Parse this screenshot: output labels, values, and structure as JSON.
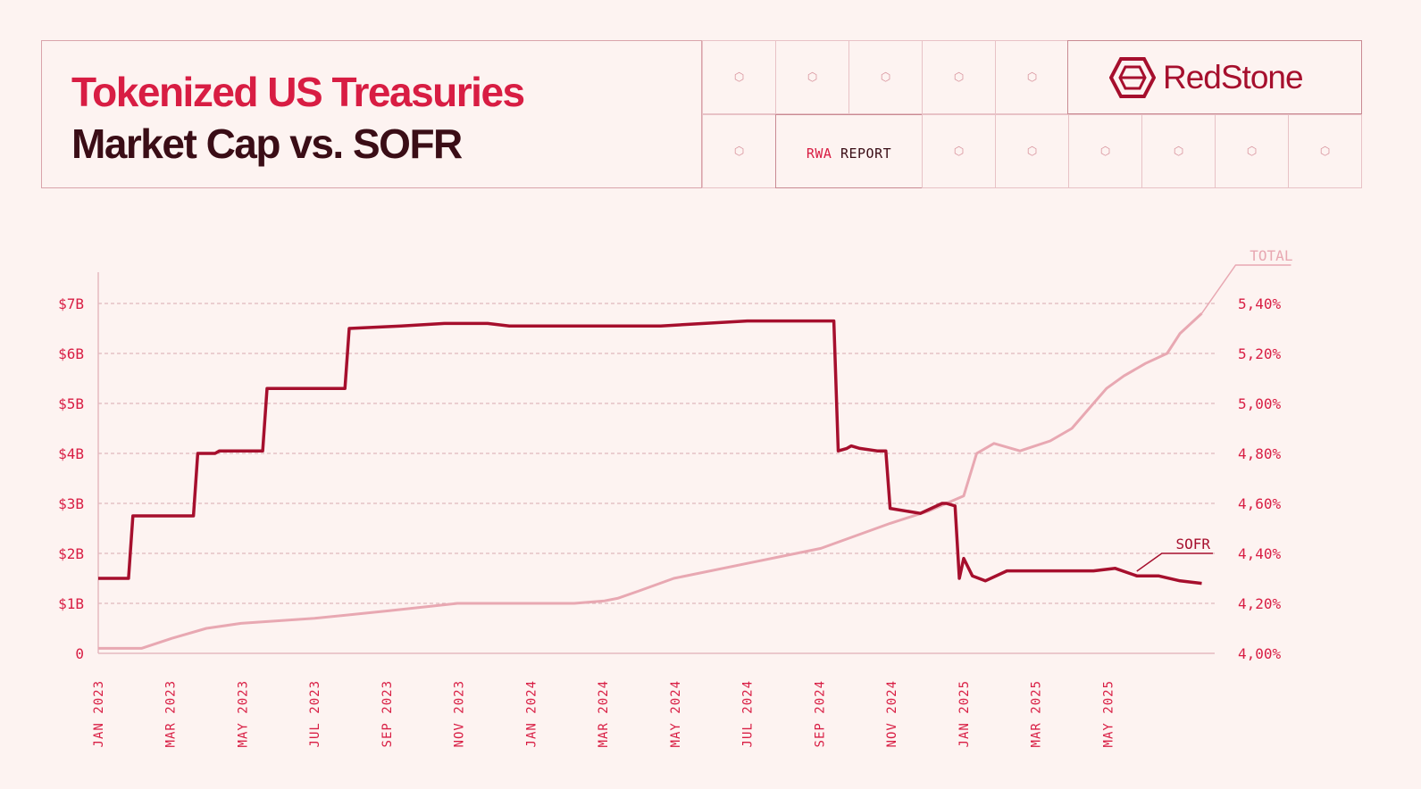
{
  "header": {
    "title_line1": "Tokenized US Treasuries",
    "title_line2": "Market Cap vs. SOFR",
    "report_label_a": "RWA",
    "report_label_b": " REPORT",
    "brand": "RedStone"
  },
  "colors": {
    "accent": "#d81d43",
    "dark": "#3a0d16",
    "sofr": "#a60f2d",
    "total": "#e8a8b2",
    "background": "#fdf3f1"
  },
  "chart_data": {
    "type": "line",
    "x_tick_labels": [
      "JAN 2023",
      "MAR 2023",
      "MAY 2023",
      "JUL 2023",
      "SEP 2023",
      "NOV 2023",
      "JAN 2024",
      "MAR 2024",
      "MAY 2024",
      "JUL 2024",
      "SEP 2024",
      "NOV 2024",
      "JAN 2025",
      "MAR 2025",
      "MAY 2025"
    ],
    "y_left_ticks": [
      "0",
      "$1B",
      "$2B",
      "$3B",
      "$4B",
      "$5B",
      "$6B",
      "$7B"
    ],
    "y_right_ticks": [
      "4,00%",
      "4,20%",
      "4,40%",
      "4,60%",
      "4,80%",
      "5,00%",
      "5,20%",
      "5,40%"
    ],
    "y_left_range": [
      0,
      7
    ],
    "y_right_range": [
      4.0,
      5.4
    ],
    "grid": "dashed horizontal",
    "series": [
      {
        "name": "SOFR",
        "axis": "right",
        "x": [
          2023.0,
          2023.05,
          2023.07,
          2023.08,
          2023.2,
          2023.22,
          2023.23,
          2023.27,
          2023.28,
          2023.38,
          2023.39,
          2023.5,
          2023.55,
          2023.57,
          2023.58,
          2023.7,
          2023.8,
          2023.85,
          2023.9,
          2023.95,
          2024.0,
          2024.05,
          2024.1,
          2024.2,
          2024.3,
          2024.4,
          2024.5,
          2024.6,
          2024.7,
          2024.71,
          2024.73,
          2024.74,
          2024.76,
          2024.8,
          2024.82,
          2024.83,
          2024.9,
          2024.95,
          2024.96,
          2024.98,
          2024.99,
          2025.0,
          2025.02,
          2025.05,
          2025.1,
          2025.2,
          2025.3,
          2025.35,
          2025.4,
          2025.45,
          2025.5,
          2025.55
        ],
        "values": [
          4.3,
          4.3,
          4.3,
          4.55,
          4.55,
          4.55,
          4.8,
          4.8,
          4.81,
          4.81,
          5.06,
          5.06,
          5.06,
          5.06,
          5.3,
          5.31,
          5.32,
          5.32,
          5.32,
          5.31,
          5.31,
          5.31,
          5.31,
          5.31,
          5.31,
          5.32,
          5.33,
          5.33,
          5.33,
          4.81,
          4.82,
          4.83,
          4.82,
          4.81,
          4.81,
          4.58,
          4.56,
          4.6,
          4.6,
          4.59,
          4.3,
          4.38,
          4.31,
          4.29,
          4.33,
          4.33,
          4.33,
          4.34,
          4.31,
          4.31,
          4.29,
          4.28
        ]
      },
      {
        "name": "TOTAL",
        "axis": "left",
        "x": [
          2023.0,
          2023.1,
          2023.17,
          2023.25,
          2023.33,
          2023.5,
          2023.67,
          2023.83,
          2024.0,
          2024.1,
          2024.17,
          2024.2,
          2024.25,
          2024.33,
          2024.5,
          2024.67,
          2024.83,
          2024.92,
          2024.96,
          2025.0,
          2025.03,
          2025.07,
          2025.13,
          2025.2,
          2025.25,
          2025.3,
          2025.33,
          2025.37,
          2025.42,
          2025.47,
          2025.5,
          2025.55
        ],
        "values": [
          0.1,
          0.1,
          0.3,
          0.5,
          0.6,
          0.7,
          0.85,
          1.0,
          1.0,
          1.0,
          1.05,
          1.1,
          1.25,
          1.5,
          1.8,
          2.1,
          2.6,
          2.85,
          3.0,
          3.15,
          4.0,
          4.2,
          4.05,
          4.25,
          4.5,
          5.0,
          5.3,
          5.55,
          5.8,
          6.0,
          6.4,
          6.8
        ]
      }
    ],
    "annotations": [
      "TOTAL",
      "SOFR"
    ]
  }
}
